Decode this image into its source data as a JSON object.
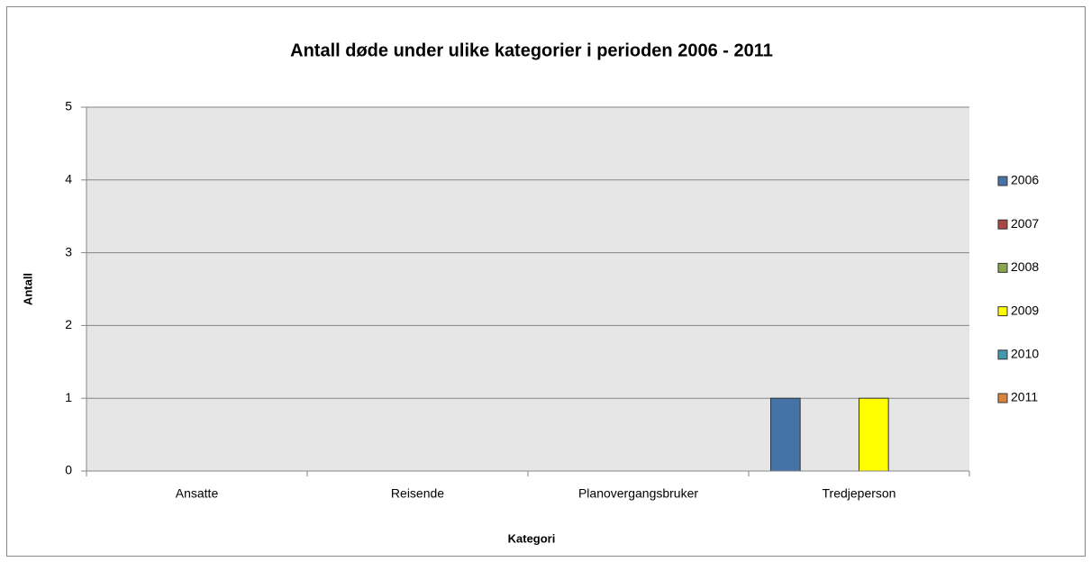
{
  "chart_data": {
    "type": "bar",
    "title": "Antall døde under ulike kategorier i perioden 2006 - 2011",
    "xlabel": "Kategori",
    "ylabel": "Antall",
    "categories": [
      "Ansatte",
      "Reisende",
      "Planovergangsbruker",
      "Tredjeperson"
    ],
    "series": [
      {
        "name": "2006",
        "color": "#4572a7",
        "values": [
          0,
          0,
          0,
          1
        ]
      },
      {
        "name": "2007",
        "color": "#aa4643",
        "values": [
          0,
          0,
          0,
          0
        ]
      },
      {
        "name": "2008",
        "color": "#89a54e",
        "values": [
          0,
          0,
          0,
          0
        ]
      },
      {
        "name": "2009",
        "color": "#ffff00",
        "values": [
          0,
          0,
          0,
          1
        ]
      },
      {
        "name": "2010",
        "color": "#4198af",
        "values": [
          0,
          0,
          0,
          0
        ]
      },
      {
        "name": "2011",
        "color": "#db843d",
        "values": [
          0,
          0,
          0,
          0
        ]
      }
    ],
    "ylim": [
      0,
      5
    ],
    "yticks": [
      0,
      1,
      2,
      3,
      4,
      5
    ],
    "grid": true,
    "legend": "right"
  }
}
